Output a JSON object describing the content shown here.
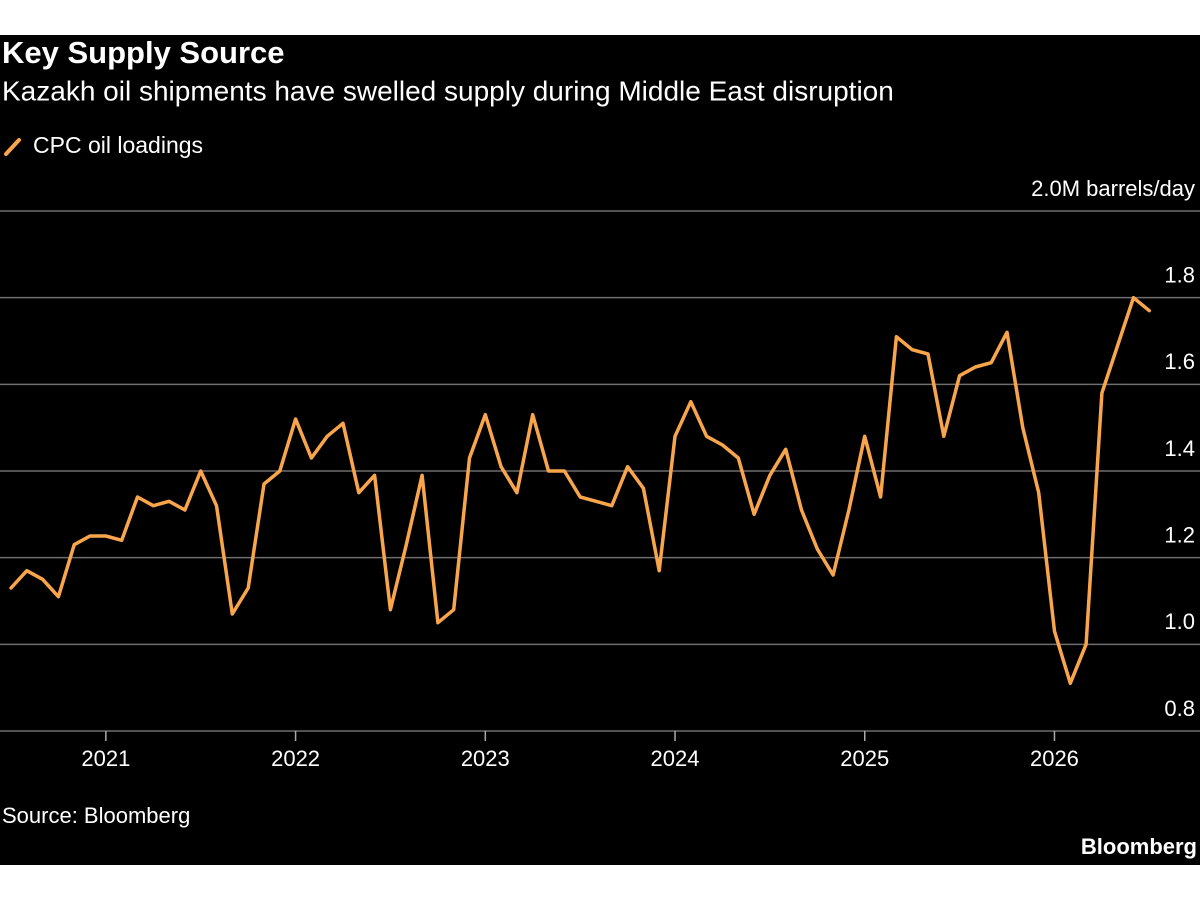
{
  "chart_data": {
    "type": "line",
    "title": "Key Supply Source",
    "subtitle": "Kazakh oil shipments have swelled supply during Middle East disruption",
    "source": "Source: Bloomberg",
    "credit": "Bloomberg",
    "categories": [
      null,
      null,
      null,
      null,
      null,
      null,
      "2021",
      null,
      null,
      null,
      null,
      null,
      null,
      null,
      null,
      null,
      null,
      null,
      "2022",
      null,
      null,
      null,
      null,
      null,
      null,
      null,
      null,
      null,
      null,
      null,
      "2023",
      null,
      null,
      null,
      null,
      null,
      null,
      null,
      null,
      null,
      null,
      null,
      "2024",
      null,
      null,
      null,
      null,
      null,
      null,
      null,
      null,
      null,
      null,
      null,
      "2025",
      null,
      null,
      null,
      null,
      null,
      null,
      null,
      null,
      null,
      null,
      null,
      "2026",
      null,
      null,
      null,
      null,
      null,
      null
    ],
    "series": [
      {
        "name": "CPC oil loadings",
        "color": "#f9a54b",
        "values": [
          1.13,
          1.17,
          1.15,
          1.11,
          1.23,
          1.25,
          1.25,
          1.24,
          1.34,
          1.32,
          1.33,
          1.31,
          1.4,
          1.32,
          1.07,
          1.13,
          1.37,
          1.4,
          1.52,
          1.43,
          1.48,
          1.51,
          1.35,
          1.39,
          1.08,
          1.23,
          1.39,
          1.05,
          1.08,
          1.43,
          1.53,
          1.41,
          1.35,
          1.53,
          1.4,
          1.4,
          1.34,
          1.33,
          1.32,
          1.41,
          1.36,
          1.17,
          1.48,
          1.56,
          1.48,
          1.46,
          1.43,
          1.3,
          1.39,
          1.45,
          1.31,
          1.22,
          1.16,
          1.31,
          1.48,
          1.34,
          1.71,
          1.68,
          1.67,
          1.48,
          1.62,
          1.64,
          1.65,
          1.72,
          1.5,
          1.35,
          1.03,
          0.91,
          1.0,
          1.58,
          1.69,
          1.8,
          1.77
        ]
      }
    ],
    "ylim": [
      0.8,
      2.0
    ],
    "yticks": [
      0.8,
      {
        "value": 1,
        "label": "1.0"
      },
      1.2,
      1.4,
      1.6,
      1.8,
      {
        "value": 2,
        "label": "2.0M barrels/day"
      }
    ],
    "grid": true
  }
}
